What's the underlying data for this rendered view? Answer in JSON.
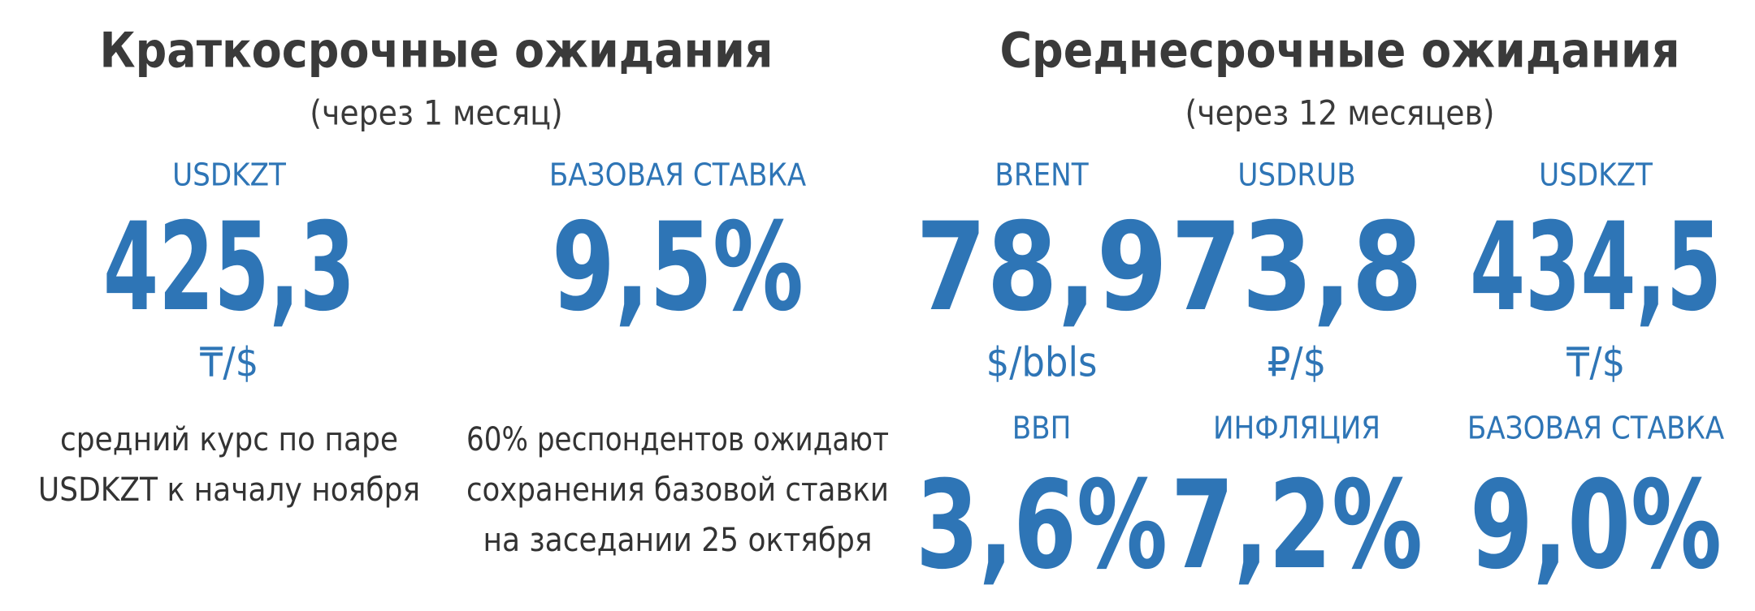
{
  "short_term": {
    "title": "Краткосрочные ожидания",
    "subtitle": "(через 1 месяц)",
    "items": [
      {
        "label": "USDKZT",
        "value": "425,3",
        "unit": "₸/$",
        "note": [
          "средний курс по паре",
          "USDKZT к началу ноября"
        ]
      },
      {
        "label": "БАЗОВАЯ СТАВКА",
        "value": "9,5%",
        "note": [
          "60% респондентов ожидают",
          "сохранения базовой ставки",
          "на заседании 25 октября"
        ]
      }
    ]
  },
  "medium_term": {
    "title": "Среднесрочные ожидания",
    "subtitle": "(через 12 месяцев)",
    "items": [
      {
        "label": "BRENT",
        "value": "78,9",
        "unit": "$/bbls"
      },
      {
        "label": "USDRUB",
        "value": "73,8",
        "unit": "₽/$"
      },
      {
        "label": "USDKZT",
        "value": "434,5",
        "unit": "₸/$"
      },
      {
        "label": "ВВП",
        "value": "3,6%"
      },
      {
        "label": "ИНФЛЯЦИЯ",
        "value": "7,2%"
      },
      {
        "label": "БАЗОВАЯ СТАВКА",
        "value": "9,0%"
      }
    ]
  }
}
